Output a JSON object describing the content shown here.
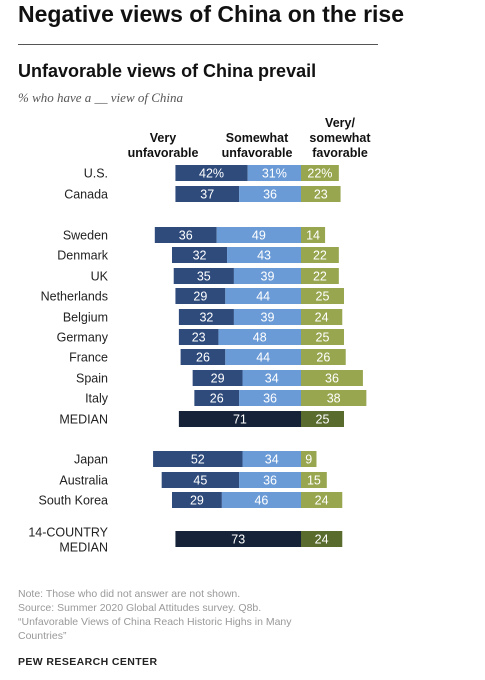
{
  "headline": "Negative views of China on the rise",
  "chart_data": {
    "type": "bar",
    "stacked": true,
    "title": "Unfavorable views of China prevail",
    "subtitle": "% who have a __ view of China",
    "column_headers": [
      "Very\nunfavorable",
      "Somewhat\nunfavorable",
      "Very/\nsomewhat\nfavorable"
    ],
    "series": [
      {
        "name": "Very unfavorable",
        "color": "#2e4b7c"
      },
      {
        "name": "Somewhat unfavorable",
        "color": "#6b9bd6"
      },
      {
        "name": "Very/somewhat favorable",
        "color": "#98a650"
      }
    ],
    "combined_colors": {
      "unfavorable": "#152238",
      "favorable": "#5a6b2e"
    },
    "rows": [
      {
        "category": "U.S.",
        "values": [
          42,
          31,
          22
        ],
        "labels": [
          "42%",
          "31%",
          "22%"
        ],
        "group": 0
      },
      {
        "category": "Canada",
        "values": [
          37,
          36,
          23
        ],
        "labels": [
          "37",
          "36",
          "23"
        ],
        "group": 0
      },
      {
        "category": "Sweden",
        "values": [
          36,
          49,
          14
        ],
        "labels": [
          "36",
          "49",
          "14"
        ],
        "group": 1
      },
      {
        "category": "Denmark",
        "values": [
          32,
          43,
          22
        ],
        "labels": [
          "32",
          "43",
          "22"
        ],
        "group": 1
      },
      {
        "category": "UK",
        "values": [
          35,
          39,
          22
        ],
        "labels": [
          "35",
          "39",
          "22"
        ],
        "group": 1
      },
      {
        "category": "Netherlands",
        "values": [
          29,
          44,
          25
        ],
        "labels": [
          "29",
          "44",
          "25"
        ],
        "group": 1
      },
      {
        "category": "Belgium",
        "values": [
          32,
          39,
          24
        ],
        "labels": [
          "32",
          "39",
          "24"
        ],
        "group": 1
      },
      {
        "category": "Germany",
        "values": [
          23,
          48,
          25
        ],
        "labels": [
          "23",
          "48",
          "25"
        ],
        "group": 1
      },
      {
        "category": "France",
        "values": [
          26,
          44,
          26
        ],
        "labels": [
          "26",
          "44",
          "26"
        ],
        "group": 1
      },
      {
        "category": "Spain",
        "values": [
          29,
          34,
          36
        ],
        "labels": [
          "29",
          "34",
          "36"
        ],
        "group": 1
      },
      {
        "category": "Italy",
        "values": [
          26,
          36,
          38
        ],
        "labels": [
          "26",
          "36",
          "38"
        ],
        "group": 1
      },
      {
        "category": "MEDIAN",
        "combined": [
          71,
          25
        ],
        "labels": [
          "71",
          "25"
        ],
        "group": 1
      },
      {
        "category": "Japan",
        "values": [
          52,
          34,
          9
        ],
        "labels": [
          "52",
          "34",
          "9"
        ],
        "group": 2
      },
      {
        "category": "Australia",
        "values": [
          45,
          36,
          15
        ],
        "labels": [
          "45",
          "36",
          "15"
        ],
        "group": 2
      },
      {
        "category": "South Korea",
        "values": [
          29,
          46,
          24
        ],
        "labels": [
          "29",
          "46",
          "24"
        ],
        "group": 2
      },
      {
        "category": "14-COUNTRY\nMEDIAN",
        "combined": [
          73,
          24
        ],
        "labels": [
          "73",
          "24"
        ],
        "group": 3
      }
    ]
  },
  "notes": {
    "note": "Note: Those who did not answer are not shown.",
    "source": "Source: Summer 2020 Global Attitudes survey. Q8b.",
    "report_line1": "“Unfavorable Views of China Reach Historic Highs in Many",
    "report_line2": "Countries”"
  },
  "org": "PEW RESEARCH CENTER"
}
